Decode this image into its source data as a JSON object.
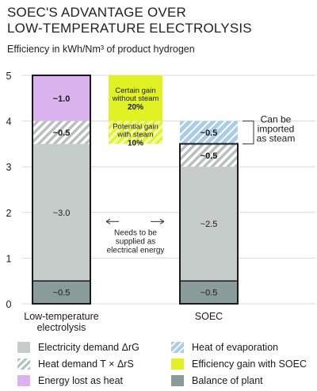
{
  "title_line1": "SOEC'S ADVANTAGE OVER",
  "title_line2": "LOW-TEMPERATURE ELECTROLYSIS",
  "subtitle": "Efficiency in kWh/Nm³ of product hydrogen",
  "colors": {
    "electricity": "#c5ccca",
    "heat_hatch_line": "#b8bfbd",
    "evaporation": "#a9cde8",
    "evaporation_line": "#ffffff",
    "lost": "#dab2ee",
    "gain": "#e0f224",
    "bop": "#8a9c9a",
    "outline": "#1a1a1a"
  },
  "chart_data": {
    "type": "bar",
    "stacked": true,
    "categories": [
      "Low-temperature\nelectrolysis",
      "SOEC"
    ],
    "ylim": [
      0,
      5
    ],
    "yticks": [
      "0",
      "1",
      "2",
      "3",
      "4",
      "5"
    ],
    "bars": [
      {
        "category": "Low-temperature\nelectrolysis",
        "segments": [
          {
            "key": "bop",
            "value": 0.5,
            "label": "~0.5"
          },
          {
            "key": "electricity",
            "value": 3.0,
            "label": "~3.0"
          },
          {
            "key": "heat",
            "value": 0.5,
            "label": "~0.5"
          },
          {
            "key": "lost",
            "value": 1.0,
            "label": "~1.0"
          }
        ]
      },
      {
        "category": "SOEC",
        "segments": [
          {
            "key": "bop",
            "value": 0.5,
            "label": "~0.5"
          },
          {
            "key": "electricity",
            "value": 2.5,
            "label": "~2.5"
          },
          {
            "key": "heat",
            "value": 0.5,
            "label": "~0.5"
          },
          {
            "key": "evaporation",
            "value": 0.5,
            "label": "~0.5"
          }
        ]
      }
    ],
    "gain_boxes": [
      {
        "key": "certain",
        "lines": [
          "Certain gain",
          "without steam"
        ],
        "value_label": "20%",
        "range": [
          4.0,
          5.0
        ]
      },
      {
        "key": "potential",
        "lines": [
          "Potential gain",
          "with steam"
        ],
        "value_label": "10%",
        "range": [
          3.5,
          4.0
        ]
      }
    ],
    "annotations": {
      "supplied": [
        "Needs to be",
        "supplied as",
        "electrical energy"
      ],
      "imported": [
        "Can be",
        "imported",
        "as steam"
      ]
    },
    "legend": [
      {
        "key": "electricity",
        "label": "Electricity demand ΔrG"
      },
      {
        "key": "evaporation",
        "label": "Heat of evaporation"
      },
      {
        "key": "heat",
        "label": "Heat demand T × ΔrS"
      },
      {
        "key": "gain",
        "label": "Efficiency gain with SOEC"
      },
      {
        "key": "lost",
        "label": "Energy lost as heat"
      },
      {
        "key": "bop",
        "label": "Balance of plant"
      }
    ]
  }
}
